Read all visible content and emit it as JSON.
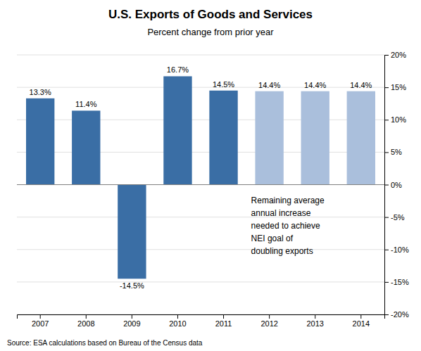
{
  "chart_data": {
    "type": "bar",
    "title": "U.S. Exports of Goods and Services",
    "subtitle": "Percent change from prior year",
    "source": "Source:  ESA calculations based on Bureau of the Census data",
    "annotation": "Remaining average\nannual increase\nneeded to achieve\nNEI goal of\ndoubling exports",
    "categories": [
      "2007",
      "2008",
      "2009",
      "2010",
      "2011",
      "2012",
      "2013",
      "2014"
    ],
    "values": [
      13.3,
      11.4,
      -14.5,
      16.7,
      14.5,
      14.4,
      14.4,
      14.4
    ],
    "value_labels": [
      "13.3%",
      "11.4%",
      "-14.5%",
      "16.7%",
      "14.5%",
      "14.4%",
      "14.4%",
      "14.4%"
    ],
    "data_labels": true,
    "colors": [
      "#3A6EA5",
      "#3A6EA5",
      "#3A6EA5",
      "#3A6EA5",
      "#3A6EA5",
      "#AABFDC",
      "#AABFDC",
      "#AABFDC"
    ],
    "ylim": [
      -20,
      20
    ],
    "yticks": [
      {
        "value": -20,
        "label": "-20%"
      },
      {
        "value": -15,
        "label": "-15%"
      },
      {
        "value": -10,
        "label": "-10%"
      },
      {
        "value": -5,
        "label": "-5%"
      },
      {
        "value": 0,
        "label": "0%"
      },
      {
        "value": 5,
        "label": "5%"
      },
      {
        "value": 10,
        "label": "10%"
      },
      {
        "value": 15,
        "label": "15%"
      },
      {
        "value": 20,
        "label": "20%"
      }
    ],
    "grid": true
  }
}
